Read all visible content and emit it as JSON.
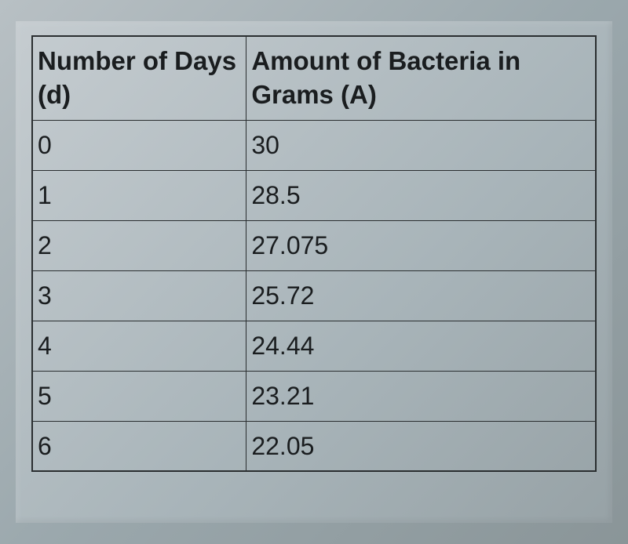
{
  "table": {
    "type": "table",
    "columns": [
      {
        "header": "Number of Days (d)",
        "width_pct": 38,
        "align": "left"
      },
      {
        "header": "Amount of Bacteria in Grams (A)",
        "width_pct": 62,
        "align": "left"
      }
    ],
    "rows": [
      {
        "days": "0",
        "amount": "30"
      },
      {
        "days": "1",
        "amount": "28.5"
      },
      {
        "days": "2",
        "amount": "27.075"
      },
      {
        "days": "3",
        "amount": "25.72"
      },
      {
        "days": "4",
        "amount": "24.44"
      },
      {
        "days": "5",
        "amount": "23.21"
      },
      {
        "days": "6",
        "amount": "22.05"
      }
    ],
    "styling": {
      "border_color": "#2a2e30",
      "background_gradient": [
        "#c5ccd0",
        "#a8b4b9",
        "#97a2a6"
      ],
      "text_color": "#1a1d1f",
      "header_fontsize_pt": 25,
      "cell_fontsize_pt": 24,
      "header_fontweight": 600,
      "cell_fontweight": 400,
      "font_family": "Arial"
    }
  }
}
